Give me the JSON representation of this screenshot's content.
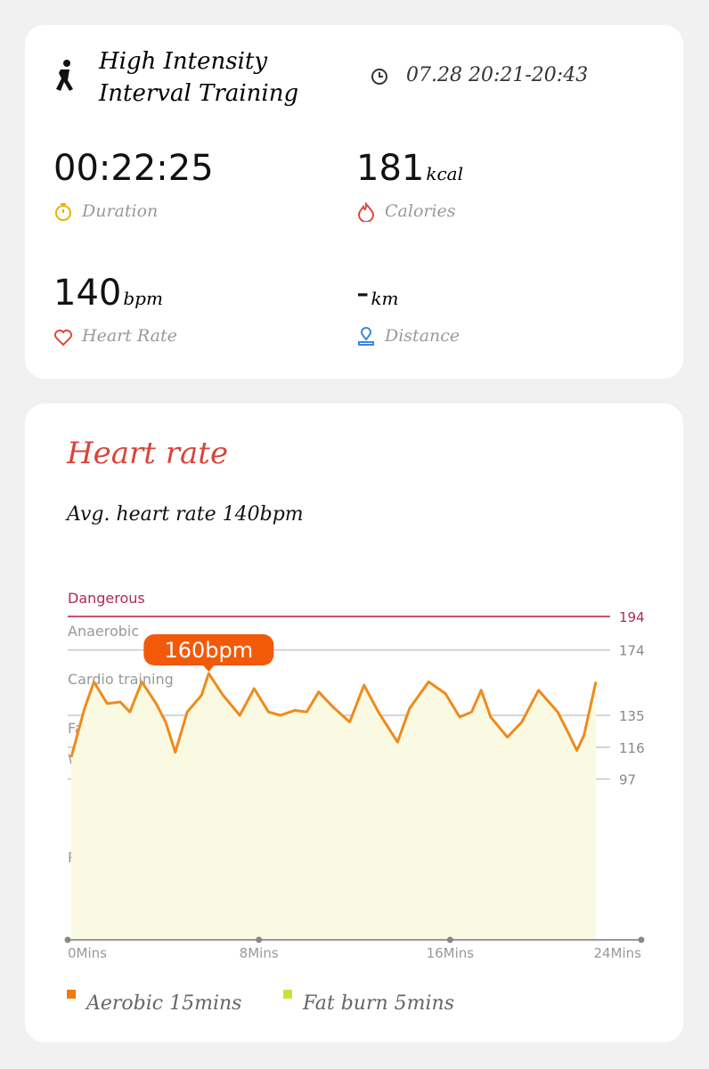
{
  "summary": {
    "title_line1": "High Intensity",
    "title_line2": "Interval Training",
    "time_range": "07.28 20:21-20:43",
    "duration": {
      "value": "00:22:25",
      "label": "Duration"
    },
    "calories": {
      "value": "181",
      "unit": "kcal",
      "label": "Calories"
    },
    "heart_rate": {
      "value": "140",
      "unit": "bpm",
      "label": "Heart Rate"
    },
    "distance": {
      "value": "-",
      "unit": "km",
      "label": "Distance"
    }
  },
  "chart_data": {
    "type": "line",
    "title": "Heart rate",
    "subtitle": "Avg. heart rate 140bpm",
    "zones": [
      "Dangerous",
      "Anaerobic",
      "Cardio training",
      "Fat burning",
      "Warm up",
      "Resting"
    ],
    "ylim": [
      0,
      194
    ],
    "yticks": [
      97,
      116,
      135,
      174,
      194
    ],
    "xlim": [
      0,
      24
    ],
    "xticks": [
      {
        "value": 0,
        "label": "0Mins"
      },
      {
        "value": 8,
        "label": "8Mins"
      },
      {
        "value": 16,
        "label": "16Mins"
      },
      {
        "value": 24,
        "label": "24Mins"
      }
    ],
    "peak_label": "160bpm",
    "series": [
      {
        "name": "Heart rate",
        "color": "#f08a1c",
        "x": [
          0.15,
          0.7,
          1.1,
          1.65,
          2.2,
          2.6,
          3.1,
          3.7,
          4.1,
          4.5,
          5.0,
          5.6,
          5.9,
          6.5,
          7.2,
          7.8,
          8.4,
          8.9,
          9.5,
          10.0,
          10.5,
          11.1,
          11.8,
          12.4,
          13.0,
          13.8,
          14.3,
          15.1,
          15.8,
          16.4,
          16.9,
          17.3,
          17.7,
          18.4,
          19.0,
          19.7,
          20.5,
          21.0,
          21.3,
          21.6,
          22.1
        ],
        "values": [
          110,
          139,
          155,
          142,
          143,
          137,
          155,
          142,
          131,
          113,
          137,
          147,
          160,
          147,
          135,
          151,
          137,
          135,
          138,
          137,
          149,
          140,
          131,
          153,
          137,
          119,
          139,
          155,
          148,
          134,
          137,
          150,
          134,
          122,
          131,
          150,
          137,
          123,
          114,
          123,
          155
        ]
      }
    ],
    "legend": [
      {
        "name": "Aerobic 15mins",
        "color": "#f07a10"
      },
      {
        "name": "Fat burn 5mins",
        "color": "#cfe03a"
      }
    ]
  }
}
